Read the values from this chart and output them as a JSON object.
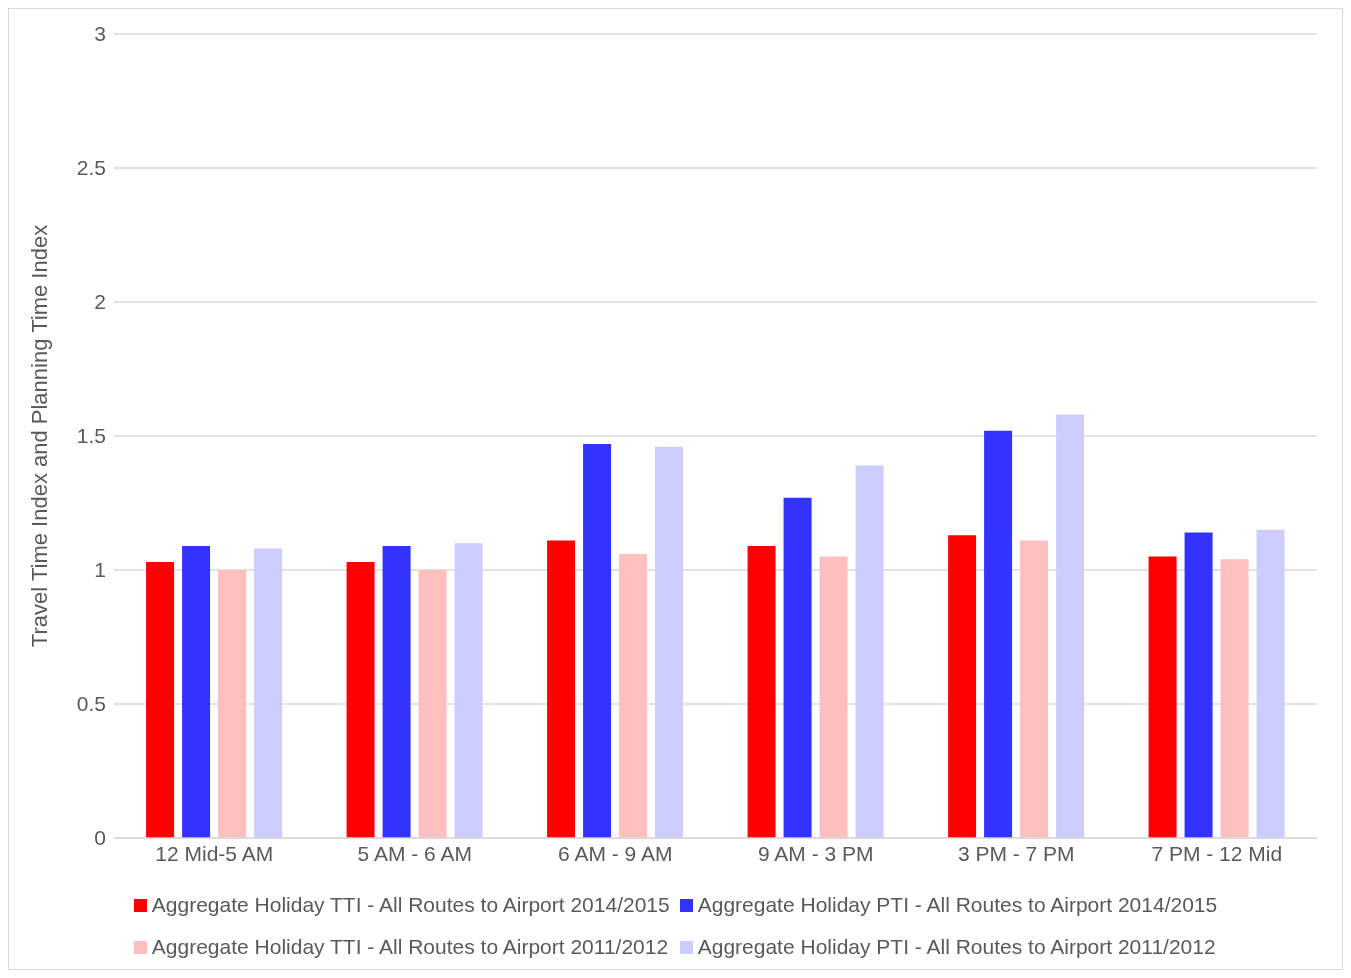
{
  "chart_data": {
    "type": "bar",
    "ylabel": "Travel Time Index and Planning Time Index",
    "categories": [
      "12 Mid-5 AM",
      "5 AM - 6 AM",
      "6 AM - 9 AM",
      "9 AM - 3 PM",
      "3 PM - 7 PM",
      "7 PM - 12 Mid"
    ],
    "series": [
      {
        "name": "Aggregate Holiday TTI - All Routes to Airport 2014/2015",
        "color": "#ff0000",
        "values": [
          1.03,
          1.03,
          1.11,
          1.09,
          1.13,
          1.05
        ]
      },
      {
        "name": "Aggregate Holiday PTI - All Routes to Airport 2014/2015",
        "color": "#3333ff",
        "values": [
          1.09,
          1.09,
          1.47,
          1.27,
          1.52,
          1.14
        ]
      },
      {
        "name": "Aggregate Holiday TTI - All Routes to Airport 2011/2012",
        "color": "#ffbfbf",
        "values": [
          1.0,
          1.0,
          1.06,
          1.05,
          1.11,
          1.04
        ]
      },
      {
        "name": "Aggregate Holiday PTI - All Routes to Airport 2011/2012",
        "color": "#ccccff",
        "values": [
          1.08,
          1.1,
          1.46,
          1.39,
          1.58,
          1.15
        ]
      }
    ],
    "ylim": [
      0,
      3
    ],
    "yticks": [
      0,
      0.5,
      1,
      1.5,
      2,
      2.5,
      3
    ],
    "grid": "y",
    "legend": "bottom"
  }
}
